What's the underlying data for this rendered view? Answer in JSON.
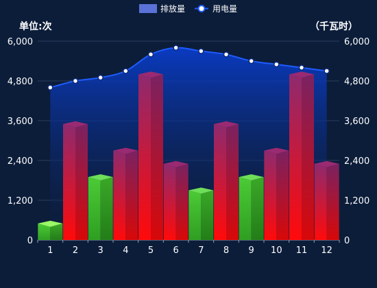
{
  "chart_data": {
    "type": "bar",
    "categories": [
      "1",
      "2",
      "3",
      "4",
      "5",
      "6",
      "7",
      "8",
      "9",
      "10",
      "11",
      "12"
    ],
    "series": [
      {
        "name": "排放量",
        "type": "bar",
        "axis": "left",
        "values": [
          500,
          3500,
          1900,
          2700,
          5000,
          2300,
          1500,
          3500,
          1900,
          2700,
          5000,
          2300
        ]
      },
      {
        "name": "用电量",
        "type": "line",
        "axis": "right",
        "smooth": true,
        "values": [
          4600,
          4800,
          4900,
          5100,
          5600,
          5800,
          5700,
          5600,
          5400,
          5300,
          5200,
          5100
        ]
      }
    ],
    "y_left": {
      "label": "单位:次",
      "min": 0,
      "max": 6000,
      "ticks": [
        "0",
        "1,200",
        "2,400",
        "3,600",
        "4,800",
        "6,000"
      ]
    },
    "y_right": {
      "label": "（千瓦时）",
      "min": 0,
      "max": 6000,
      "ticks": [
        "0",
        "1,200",
        "2,400",
        "3,600",
        "4,800",
        "6,000"
      ]
    },
    "legend": {
      "position": "top-center"
    },
    "grid": true,
    "colors": {
      "bar_red_top": "#8e2a6e",
      "bar_red_bottom": "#ff0a0a",
      "bar_green": "#3cb62a",
      "bar_green_light": "#7df055",
      "line": "#1e5cff",
      "area_top": "#0a3cc8",
      "area_bottom": "#0c1d3a",
      "marker_fill": "#ffffff"
    }
  }
}
